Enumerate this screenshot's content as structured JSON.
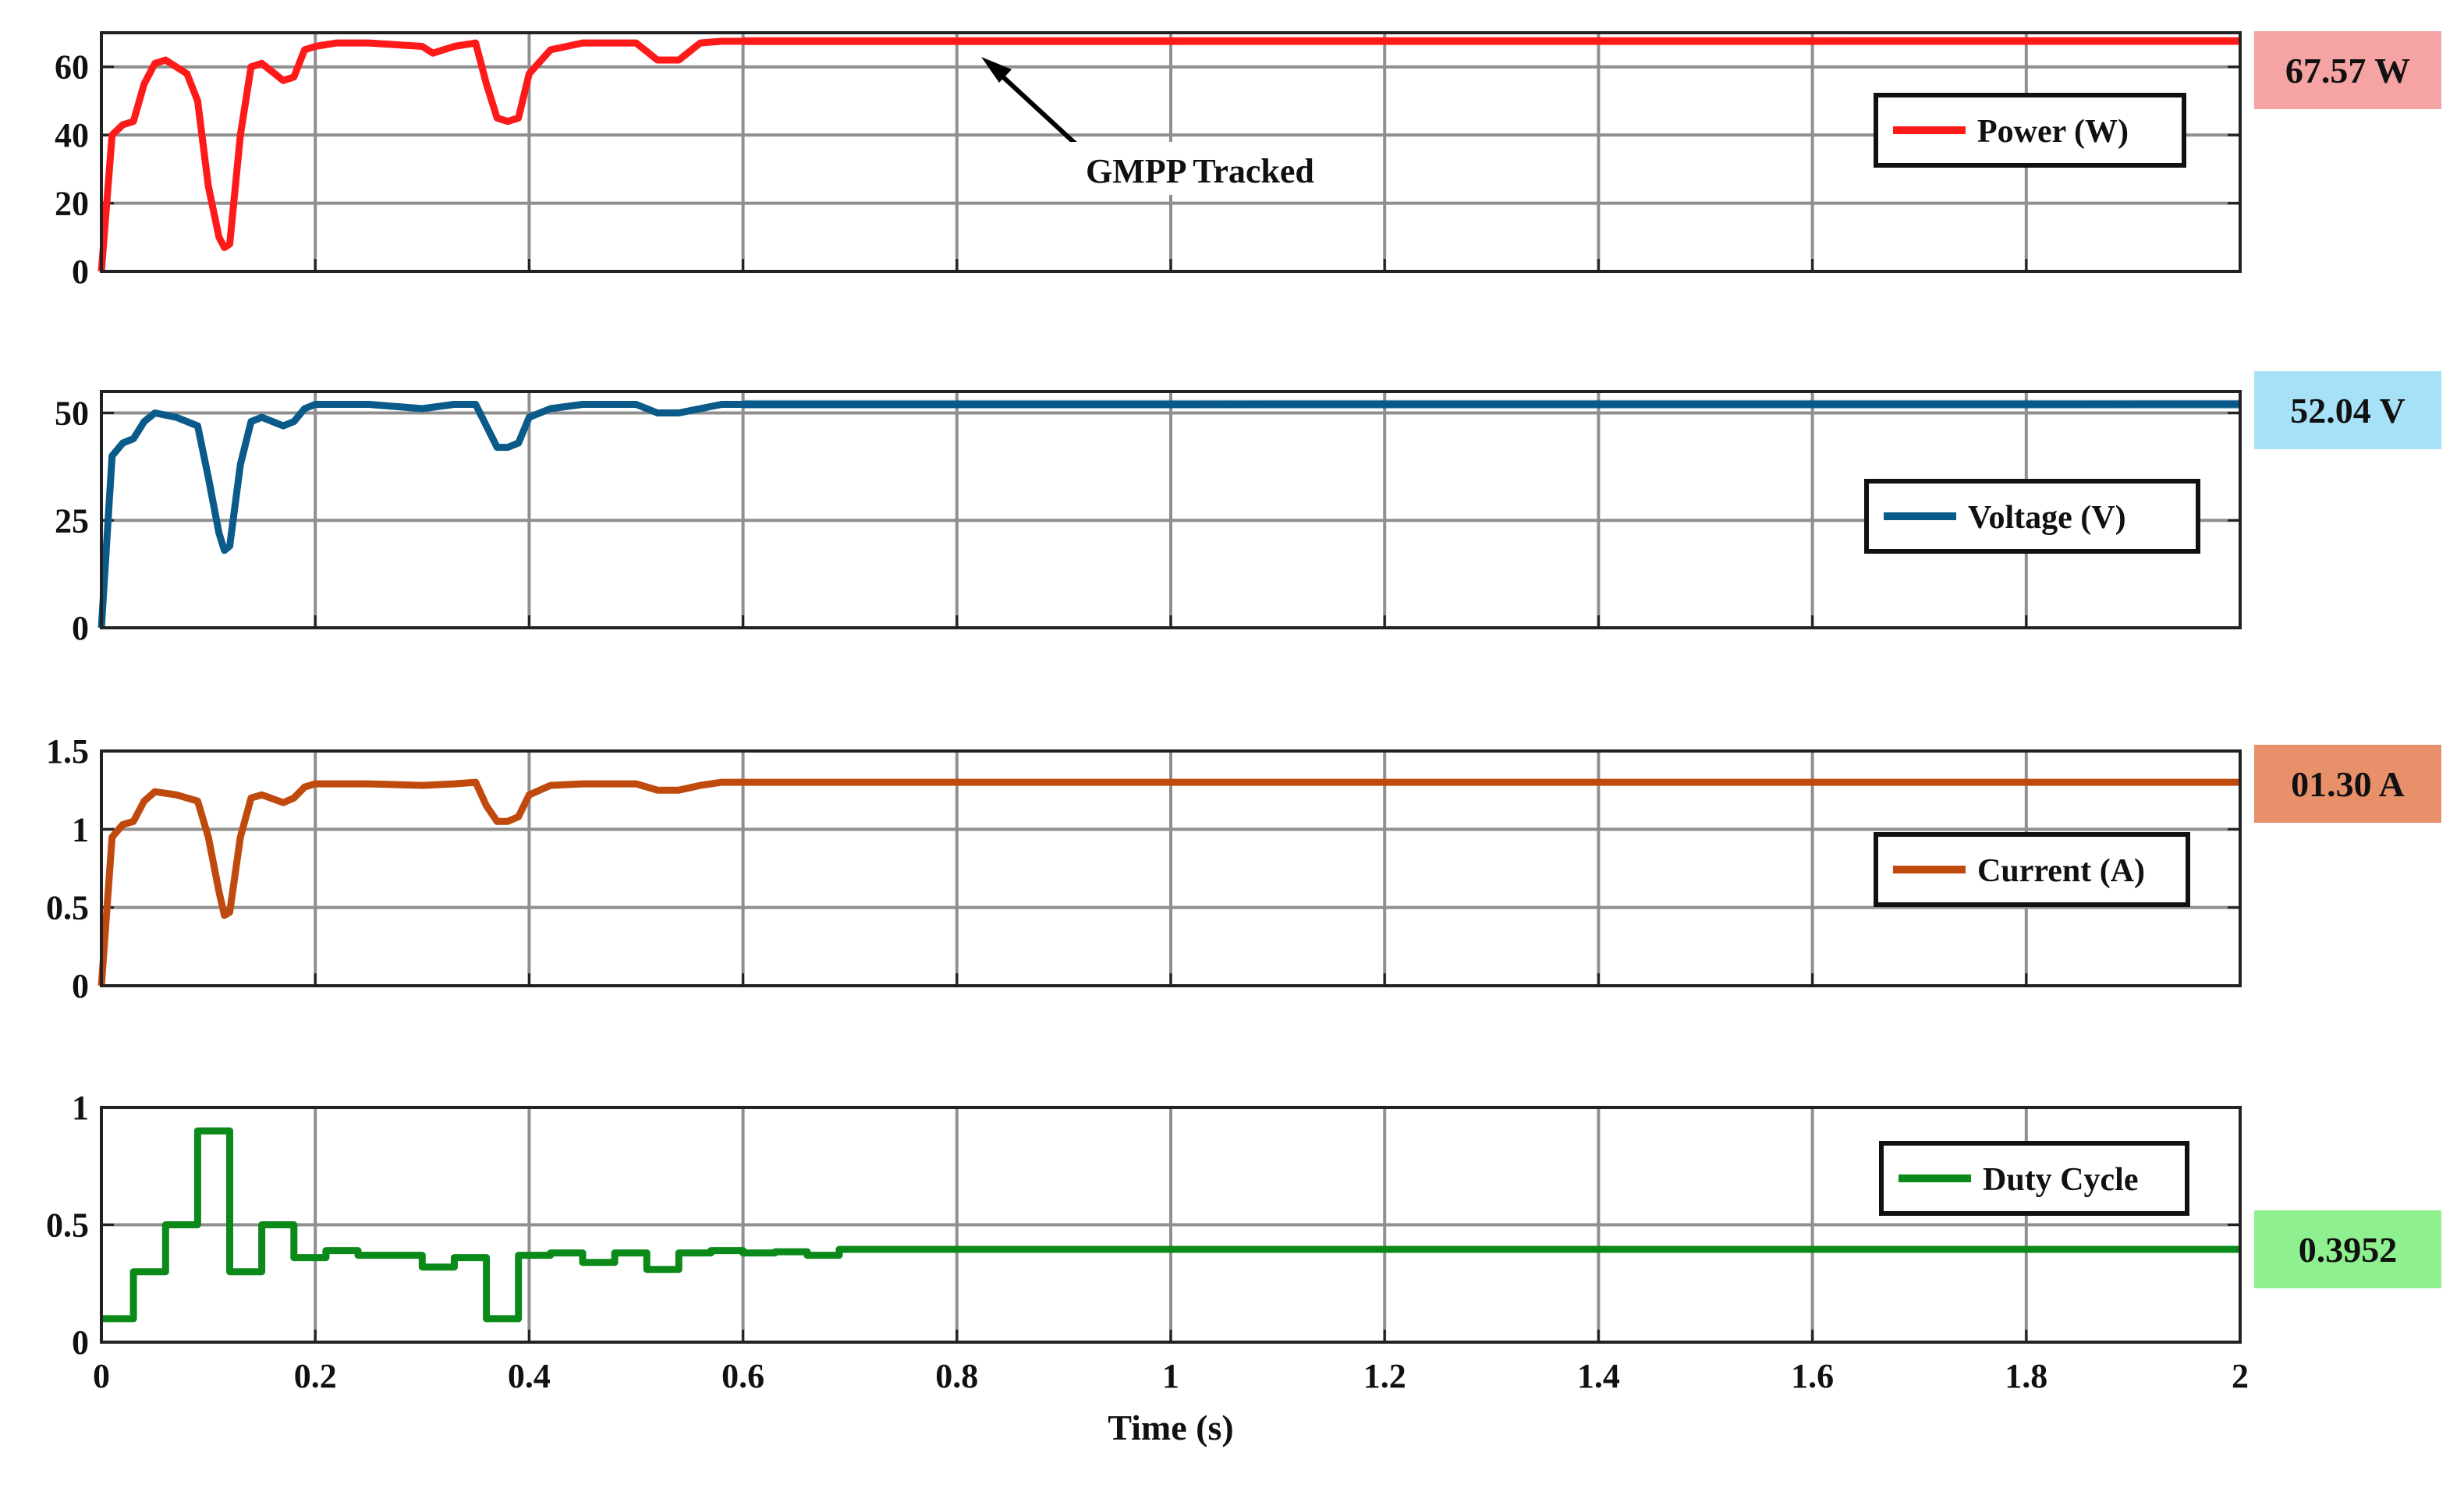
{
  "figure": {
    "annotation": "GMPP Tracked"
  },
  "chart_data": [
    {
      "type": "line",
      "panel": "power",
      "series": [
        {
          "name": "Power (W)",
          "color": "#ff1a1a",
          "x": [
            0,
            0.01,
            0.02,
            0.03,
            0.04,
            0.05,
            0.06,
            0.08,
            0.09,
            0.1,
            0.11,
            0.115,
            0.12,
            0.13,
            0.14,
            0.15,
            0.17,
            0.18,
            0.19,
            0.2,
            0.22,
            0.25,
            0.3,
            0.31,
            0.33,
            0.35,
            0.36,
            0.37,
            0.38,
            0.39,
            0.4,
            0.42,
            0.45,
            0.5,
            0.52,
            0.54,
            0.56,
            0.58,
            0.6,
            2
          ],
          "y": [
            0,
            40,
            43,
            44,
            55,
            61,
            62,
            58,
            50,
            25,
            10,
            7,
            8,
            40,
            60,
            61,
            56,
            57,
            65,
            66,
            67,
            67,
            66,
            64,
            66,
            67,
            55,
            45,
            44,
            45,
            58,
            65,
            67,
            67,
            62,
            62,
            67,
            67.5,
            67.5,
            67.57
          ],
          "noise_band": [
            0.6,
            2,
            1.2
          ]
        }
      ],
      "legend_label": "Power (W)",
      "yticks": [
        0,
        20,
        40,
        60
      ],
      "ylim": [
        0,
        70
      ],
      "xlim": [
        0,
        2
      ],
      "badge": "67.57 W",
      "badge_color": "#f5a3a3"
    },
    {
      "type": "line",
      "panel": "voltage",
      "series": [
        {
          "name": "Voltage (V)",
          "color": "#0a5a8a",
          "x": [
            0,
            0.01,
            0.02,
            0.03,
            0.04,
            0.05,
            0.07,
            0.09,
            0.1,
            0.11,
            0.115,
            0.12,
            0.13,
            0.14,
            0.15,
            0.17,
            0.18,
            0.19,
            0.2,
            0.25,
            0.3,
            0.33,
            0.35,
            0.36,
            0.37,
            0.38,
            0.39,
            0.4,
            0.42,
            0.45,
            0.5,
            0.52,
            0.54,
            0.56,
            0.58,
            0.6,
            2
          ],
          "y": [
            0,
            40,
            43,
            44,
            48,
            50,
            49,
            47,
            35,
            22,
            18,
            19,
            38,
            48,
            49,
            47,
            48,
            51,
            52,
            52,
            51,
            52,
            52,
            47,
            42,
            42,
            43,
            49,
            51,
            52,
            52,
            50,
            50,
            51,
            52,
            52,
            52.04
          ],
          "noise_band": [
            0.6,
            2,
            1.0
          ]
        }
      ],
      "legend_label": "Voltage (V)",
      "yticks": [
        0,
        25,
        50
      ],
      "ylim": [
        0,
        55
      ],
      "xlim": [
        0,
        2
      ],
      "badge": "52.04 V",
      "badge_color": "#a6e1f7"
    },
    {
      "type": "line",
      "panel": "current",
      "series": [
        {
          "name": "Current (A)",
          "color": "#c04a0e",
          "x": [
            0,
            0.01,
            0.02,
            0.03,
            0.04,
            0.05,
            0.07,
            0.09,
            0.1,
            0.11,
            0.115,
            0.12,
            0.13,
            0.14,
            0.15,
            0.17,
            0.18,
            0.19,
            0.2,
            0.25,
            0.3,
            0.33,
            0.35,
            0.36,
            0.37,
            0.38,
            0.39,
            0.4,
            0.42,
            0.45,
            0.5,
            0.52,
            0.54,
            0.56,
            0.58,
            0.6,
            2
          ],
          "y": [
            0,
            0.95,
            1.03,
            1.05,
            1.18,
            1.24,
            1.22,
            1.18,
            0.95,
            0.6,
            0.45,
            0.47,
            0.95,
            1.2,
            1.22,
            1.17,
            1.2,
            1.27,
            1.29,
            1.29,
            1.28,
            1.29,
            1.3,
            1.15,
            1.05,
            1.05,
            1.08,
            1.22,
            1.28,
            1.29,
            1.29,
            1.25,
            1.25,
            1.28,
            1.3,
            1.3,
            1.3
          ],
          "noise_band": [
            0.6,
            2,
            0.02
          ]
        }
      ],
      "legend_label": "Current (A)",
      "yticks": [
        0,
        0.5,
        1,
        1.5
      ],
      "ylim": [
        0,
        1.5
      ],
      "xlim": [
        0,
        2
      ],
      "badge": "01.30 A",
      "badge_color": "#e8906a"
    },
    {
      "type": "line",
      "panel": "duty",
      "step": true,
      "series": [
        {
          "name": "Duty Cycle",
          "color": "#0b8a1a",
          "x": [
            0,
            0.03,
            0.06,
            0.09,
            0.12,
            0.15,
            0.18,
            0.21,
            0.24,
            0.27,
            0.3,
            0.33,
            0.36,
            0.39,
            0.42,
            0.45,
            0.48,
            0.51,
            0.54,
            0.57,
            0.6,
            0.63,
            0.66,
            0.69,
            2
          ],
          "y": [
            0.1,
            0.3,
            0.5,
            0.9,
            0.3,
            0.5,
            0.36,
            0.39,
            0.37,
            0.37,
            0.32,
            0.36,
            0.1,
            0.37,
            0.38,
            0.34,
            0.38,
            0.31,
            0.38,
            0.39,
            0.38,
            0.385,
            0.37,
            0.3952,
            0.3952
          ]
        }
      ],
      "legend_label": "Duty Cycle",
      "yticks": [
        0,
        0.5,
        1
      ],
      "ylim": [
        0,
        1
      ],
      "xlim": [
        0,
        2
      ],
      "xticks": [
        "0",
        "0.2",
        "0.4",
        "0.6",
        "0.8",
        "1",
        "1.2",
        "1.4",
        "1.6",
        "1.8",
        "2"
      ],
      "xlabel": "Time (s)",
      "badge": "0.3952",
      "badge_color": "#8ff08f"
    }
  ]
}
